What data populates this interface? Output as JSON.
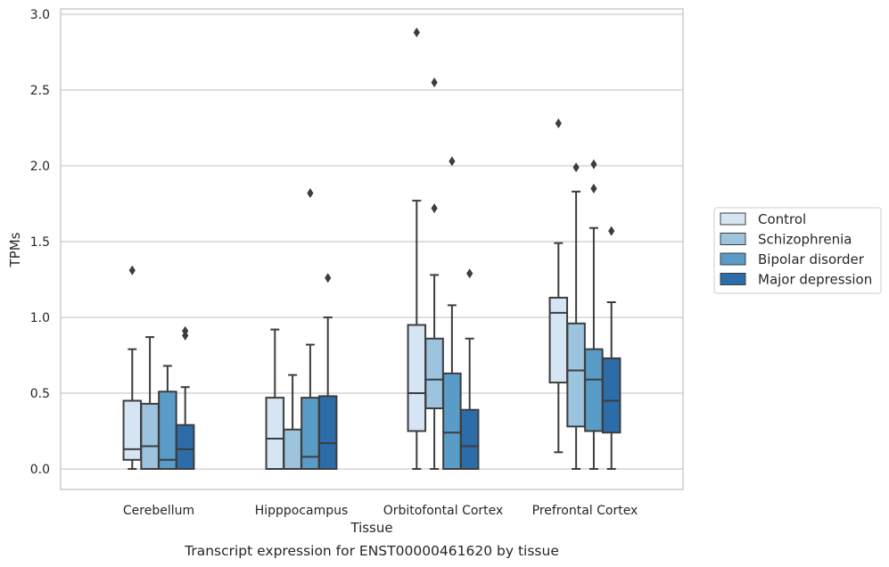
{
  "chart_data": {
    "type": "boxplot",
    "caption": "Transcript expression for ENST00000461620 by tissue",
    "xlabel": "Tissue",
    "ylabel": "TPMs",
    "ylim": [
      -0.14,
      3.03
    ],
    "yticks": [
      "0.0",
      "0.5",
      "1.0",
      "1.5",
      "2.0",
      "2.5",
      "3.0"
    ],
    "categories": [
      "Cerebellum",
      "Hipppocampus",
      "Orbitofontal Cortex",
      "Prefrontal Cortex"
    ],
    "legend_position": "right",
    "grid": "horizontal",
    "series": [
      {
        "name": "Control",
        "color": "#d6e5f4",
        "boxes": [
          {
            "q1": 0.06,
            "median": 0.13,
            "q3": 0.45,
            "whisker_low": 0.0,
            "whisker_high": 0.79,
            "outliers": [
              1.31
            ]
          },
          {
            "q1": 0.0,
            "median": 0.2,
            "q3": 0.47,
            "whisker_low": 0.0,
            "whisker_high": 0.92,
            "outliers": []
          },
          {
            "q1": 0.25,
            "median": 0.5,
            "q3": 0.95,
            "whisker_low": 0.0,
            "whisker_high": 1.77,
            "outliers": [
              2.88
            ]
          },
          {
            "q1": 0.57,
            "median": 1.03,
            "q3": 1.13,
            "whisker_low": 0.11,
            "whisker_high": 1.49,
            "outliers": [
              2.28
            ]
          }
        ]
      },
      {
        "name": "Schizophrenia",
        "color": "#9dc4df",
        "boxes": [
          {
            "q1": 0.0,
            "median": 0.15,
            "q3": 0.43,
            "whisker_low": 0.0,
            "whisker_high": 0.87,
            "outliers": []
          },
          {
            "q1": 0.0,
            "median": 0.0,
            "q3": 0.26,
            "whisker_low": 0.0,
            "whisker_high": 0.62,
            "outliers": []
          },
          {
            "q1": 0.4,
            "median": 0.59,
            "q3": 0.86,
            "whisker_low": 0.0,
            "whisker_high": 1.28,
            "outliers": [
              1.72,
              2.55
            ]
          },
          {
            "q1": 0.28,
            "median": 0.65,
            "q3": 0.96,
            "whisker_low": 0.0,
            "whisker_high": 1.83,
            "outliers": [
              1.99
            ]
          }
        ]
      },
      {
        "name": "Bipolar disorder",
        "color": "#5a9cc8",
        "boxes": [
          {
            "q1": 0.0,
            "median": 0.06,
            "q3": 0.51,
            "whisker_low": 0.0,
            "whisker_high": 0.68,
            "outliers": []
          },
          {
            "q1": 0.0,
            "median": 0.08,
            "q3": 0.47,
            "whisker_low": 0.0,
            "whisker_high": 0.82,
            "outliers": [
              1.82
            ]
          },
          {
            "q1": 0.0,
            "median": 0.24,
            "q3": 0.63,
            "whisker_low": 0.0,
            "whisker_high": 1.08,
            "outliers": [
              2.03
            ]
          },
          {
            "q1": 0.25,
            "median": 0.59,
            "q3": 0.79,
            "whisker_low": 0.0,
            "whisker_high": 1.59,
            "outliers": [
              1.85,
              2.01
            ]
          }
        ]
      },
      {
        "name": "Major depression",
        "color": "#2c6ca9",
        "boxes": [
          {
            "q1": 0.0,
            "median": 0.13,
            "q3": 0.29,
            "whisker_low": 0.0,
            "whisker_high": 0.54,
            "outliers": [
              0.88,
              0.91
            ]
          },
          {
            "q1": 0.0,
            "median": 0.17,
            "q3": 0.48,
            "whisker_low": 0.0,
            "whisker_high": 1.0,
            "outliers": [
              1.26
            ]
          },
          {
            "q1": 0.0,
            "median": 0.15,
            "q3": 0.39,
            "whisker_low": 0.0,
            "whisker_high": 0.86,
            "outliers": [
              1.29
            ]
          },
          {
            "q1": 0.24,
            "median": 0.45,
            "q3": 0.73,
            "whisker_low": 0.0,
            "whisker_high": 1.1,
            "outliers": [
              1.57
            ]
          }
        ]
      }
    ]
  }
}
